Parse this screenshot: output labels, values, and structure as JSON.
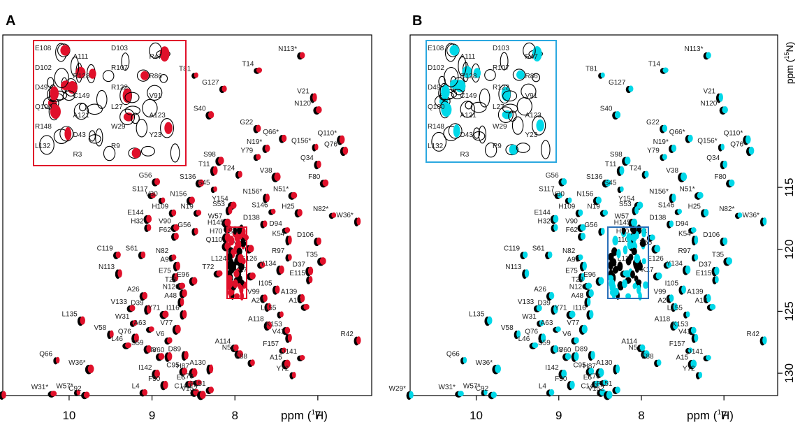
{
  "chart_data": [
    {
      "type": "scatter",
      "panel_label": "A",
      "xlabel": "ppm (1H)",
      "ylabel": "ppm (15N)",
      "x_reversed": true,
      "y_reversed": true,
      "xlim": [
        10.8,
        6.35
      ],
      "ylim": [
        102.7,
        131.8
      ],
      "xticks": [
        10,
        9,
        8,
        7
      ],
      "yticks": [],
      "colors": {
        "reference": "#000000",
        "overlay": "#e0102a",
        "box": "#e0102a"
      },
      "inset_labels": [
        "E108",
        "A111",
        "D103",
        "R47",
        "D102",
        "R128",
        "R107",
        "R86",
        "D49",
        "C149",
        "R122",
        "V91",
        "Q100",
        "A121",
        "L27",
        "A123",
        "R148",
        "D43",
        "W29",
        "Y23",
        "L132",
        "R3",
        "R9"
      ],
      "peaks": [
        {
          "label": "T81",
          "x": 8.48,
          "y": 106.0
        },
        {
          "label": "T14",
          "x": 7.72,
          "y": 105.6
        },
        {
          "label": "N113*",
          "x": 7.2,
          "y": 104.4
        },
        {
          "label": "G127",
          "x": 8.14,
          "y": 107.1
        },
        {
          "label": "V21",
          "x": 7.05,
          "y": 107.8
        },
        {
          "label": "N120*",
          "x": 7.0,
          "y": 108.8
        },
        {
          "label": "S40",
          "x": 8.3,
          "y": 109.2
        },
        {
          "label": "G22",
          "x": 7.73,
          "y": 110.3
        },
        {
          "label": "Q66*",
          "x": 7.42,
          "y": 111.1
        },
        {
          "label": "N19*",
          "x": 7.62,
          "y": 111.9
        },
        {
          "label": "Q156*",
          "x": 7.03,
          "y": 111.8
        },
        {
          "label": "Q110*",
          "x": 6.72,
          "y": 111.2
        },
        {
          "label": "Q76*",
          "x": 6.68,
          "y": 112.1
        },
        {
          "label": "Y79",
          "x": 7.73,
          "y": 112.6
        },
        {
          "label": "S98",
          "x": 8.18,
          "y": 112.9
        },
        {
          "label": "Q34",
          "x": 7.0,
          "y": 113.2
        },
        {
          "label": "T11",
          "x": 8.25,
          "y": 113.7
        },
        {
          "label": "T24",
          "x": 7.95,
          "y": 114.0
        },
        {
          "label": "V38",
          "x": 7.5,
          "y": 114.2
        },
        {
          "label": "G56",
          "x": 8.95,
          "y": 114.6
        },
        {
          "label": "S136",
          "x": 8.42,
          "y": 114.7
        },
        {
          "label": "F80",
          "x": 6.92,
          "y": 114.7
        },
        {
          "label": "S45",
          "x": 8.25,
          "y": 115.2
        },
        {
          "label": "S117",
          "x": 9.0,
          "y": 115.7
        },
        {
          "label": "N51*",
          "x": 7.3,
          "y": 115.7
        },
        {
          "label": "N156*",
          "x": 7.62,
          "y": 115.9
        },
        {
          "label": "N156",
          "x": 8.53,
          "y": 116.1
        },
        {
          "label": "V30",
          "x": 8.88,
          "y": 116.1
        },
        {
          "label": "Y154",
          "x": 8.03,
          "y": 116.5
        },
        {
          "label": "S53",
          "x": 8.07,
          "y": 116.9
        },
        {
          "label": "S146",
          "x": 7.55,
          "y": 117.0
        },
        {
          "label": "H25",
          "x": 7.23,
          "y": 117.1
        },
        {
          "label": "N82*",
          "x": 6.82,
          "y": 117.3
        },
        {
          "label": "H109",
          "x": 8.75,
          "y": 117.1
        },
        {
          "label": "N19",
          "x": 8.45,
          "y": 117.1
        },
        {
          "label": "W36*",
          "x": 6.52,
          "y": 117.8
        },
        {
          "label": "E144",
          "x": 9.05,
          "y": 117.6
        },
        {
          "label": "W57",
          "x": 8.1,
          "y": 117.9
        },
        {
          "label": "D138",
          "x": 7.65,
          "y": 118.0
        },
        {
          "label": "H32",
          "x": 9.05,
          "y": 118.3
        },
        {
          "label": "V90",
          "x": 8.72,
          "y": 118.3
        },
        {
          "label": "H145",
          "x": 8.08,
          "y": 118.4
        },
        {
          "label": "D94",
          "x": 7.38,
          "y": 118.5
        },
        {
          "label": "G56",
          "x": 8.48,
          "y": 118.6
        },
        {
          "label": "F62",
          "x": 8.72,
          "y": 119.0
        },
        {
          "label": "H70",
          "x": 8.1,
          "y": 119.1
        },
        {
          "label": "S74",
          "x": 7.88,
          "y": 119.1
        },
        {
          "label": "K54",
          "x": 7.35,
          "y": 119.3
        },
        {
          "label": "D106",
          "x": 7.0,
          "y": 119.4
        },
        {
          "label": "Q110",
          "x": 8.1,
          "y": 119.8
        },
        {
          "label": "V55",
          "x": 7.82,
          "y": 120.0
        },
        {
          "label": "C119",
          "x": 9.42,
          "y": 120.5
        },
        {
          "label": "S61",
          "x": 9.12,
          "y": 120.5
        },
        {
          "label": "N82",
          "x": 8.75,
          "y": 120.7
        },
        {
          "label": "R97",
          "x": 7.35,
          "y": 120.7
        },
        {
          "label": "T35",
          "x": 6.95,
          "y": 121.0
        },
        {
          "label": "A93",
          "x": 8.7,
          "y": 121.4
        },
        {
          "label": "L124",
          "x": 8.05,
          "y": 121.3
        },
        {
          "label": "E126",
          "x": 7.68,
          "y": 121.3
        },
        {
          "label": "Y134",
          "x": 7.45,
          "y": 121.7
        },
        {
          "label": "D37",
          "x": 7.1,
          "y": 121.8
        },
        {
          "label": "N113",
          "x": 9.4,
          "y": 122.0
        },
        {
          "label": "K17",
          "x": 7.8,
          "y": 122.2
        },
        {
          "label": "T72",
          "x": 8.2,
          "y": 122.0
        },
        {
          "label": "E75",
          "x": 8.72,
          "y": 122.3
        },
        {
          "label": "E96",
          "x": 8.5,
          "y": 122.6
        },
        {
          "label": "E115",
          "x": 7.1,
          "y": 122.5
        },
        {
          "label": "T28",
          "x": 8.65,
          "y": 123.0
        },
        {
          "label": "N120",
          "x": 8.62,
          "y": 123.6
        },
        {
          "label": "I105",
          "x": 7.5,
          "y": 123.3
        },
        {
          "label": "A26",
          "x": 9.1,
          "y": 123.8
        },
        {
          "label": "V99",
          "x": 7.65,
          "y": 124.0
        },
        {
          "label": "A139",
          "x": 7.2,
          "y": 124.0
        },
        {
          "label": "A48",
          "x": 8.65,
          "y": 124.3
        },
        {
          "label": "V133",
          "x": 9.25,
          "y": 124.8
        },
        {
          "label": "D39",
          "x": 9.05,
          "y": 124.9
        },
        {
          "label": "A20",
          "x": 7.6,
          "y": 124.7
        },
        {
          "label": "A18",
          "x": 7.15,
          "y": 124.7
        },
        {
          "label": "Y71",
          "x": 8.85,
          "y": 125.3
        },
        {
          "label": "I116",
          "x": 8.62,
          "y": 125.3
        },
        {
          "label": "L155",
          "x": 7.45,
          "y": 125.3
        },
        {
          "label": "L135",
          "x": 9.85,
          "y": 125.8
        },
        {
          "label": "W31",
          "x": 9.22,
          "y": 126.0
        },
        {
          "label": "A63",
          "x": 9.02,
          "y": 126.5
        },
        {
          "label": "V77",
          "x": 8.7,
          "y": 126.5
        },
        {
          "label": "A118",
          "x": 7.6,
          "y": 126.2
        },
        {
          "label": "K153",
          "x": 7.38,
          "y": 126.6
        },
        {
          "label": "V58",
          "x": 9.5,
          "y": 126.9
        },
        {
          "label": "Q76",
          "x": 9.2,
          "y": 127.2
        },
        {
          "label": "V6",
          "x": 8.8,
          "y": 127.4
        },
        {
          "label": "V41",
          "x": 7.35,
          "y": 127.2
        },
        {
          "label": "R42",
          "x": 6.52,
          "y": 127.4
        },
        {
          "label": "L46",
          "x": 9.3,
          "y": 127.8
        },
        {
          "label": "S59",
          "x": 9.05,
          "y": 128.1
        },
        {
          "label": "A114",
          "x": 8.0,
          "y": 128.0
        },
        {
          "label": "N51",
          "x": 7.95,
          "y": 128.5
        },
        {
          "label": "F157",
          "x": 7.42,
          "y": 128.2
        },
        {
          "label": "I8",
          "x": 8.9,
          "y": 128.7
        },
        {
          "label": "V60",
          "x": 8.8,
          "y": 128.7
        },
        {
          "label": "D89",
          "x": 8.6,
          "y": 128.6
        },
        {
          "label": "D141",
          "x": 7.2,
          "y": 128.8
        },
        {
          "label": "Q66",
          "x": 10.15,
          "y": 129.0
        },
        {
          "label": "F88",
          "x": 7.8,
          "y": 129.2
        },
        {
          "label": "A15",
          "x": 7.38,
          "y": 129.3
        },
        {
          "label": "A130",
          "x": 8.3,
          "y": 129.7
        },
        {
          "label": "W36*",
          "x": 9.75,
          "y": 129.7
        },
        {
          "label": "C95",
          "x": 8.62,
          "y": 129.9
        },
        {
          "label": "H87",
          "x": 8.5,
          "y": 130.0
        },
        {
          "label": "Y72",
          "x": 7.3,
          "y": 130.2
        },
        {
          "label": "I142",
          "x": 8.95,
          "y": 130.1
        },
        {
          "label": "K78",
          "x": 8.45,
          "y": 130.8
        },
        {
          "label": "E6",
          "x": 8.55,
          "y": 130.9
        },
        {
          "label": "F50",
          "x": 8.85,
          "y": 131.0
        },
        {
          "label": "F151",
          "x": 8.3,
          "y": 131.4
        },
        {
          "label": "L4",
          "x": 9.1,
          "y": 131.6
        },
        {
          "label": "C140",
          "x": 8.48,
          "y": 131.6
        },
        {
          "label": "W31*",
          "x": 10.2,
          "y": 131.7
        },
        {
          "label": "W57*",
          "x": 9.9,
          "y": 131.6
        },
        {
          "label": "C92",
          "x": 9.8,
          "y": 131.8
        },
        {
          "label": "V152",
          "x": 8.4,
          "y": 131.8
        },
        {
          "label": "W29*",
          "x": 10.8,
          "y": 131.8
        }
      ]
    },
    {
      "type": "scatter",
      "panel_label": "B",
      "xlabel": "ppm (1H)",
      "ylabel": "ppm (15N)",
      "x_reversed": true,
      "y_reversed": true,
      "xlim": [
        10.8,
        6.35
      ],
      "ylim": [
        102.7,
        131.8
      ],
      "xticks": [
        10,
        9,
        8,
        7
      ],
      "yticks": [
        115,
        120,
        125,
        130
      ],
      "colors": {
        "reference": "#000000",
        "overlay": "#00d8e8",
        "box": "#2aa8e0",
        "zoom_box": "#2a6fb8"
      },
      "same_peaks_as_panel": "A"
    }
  ]
}
